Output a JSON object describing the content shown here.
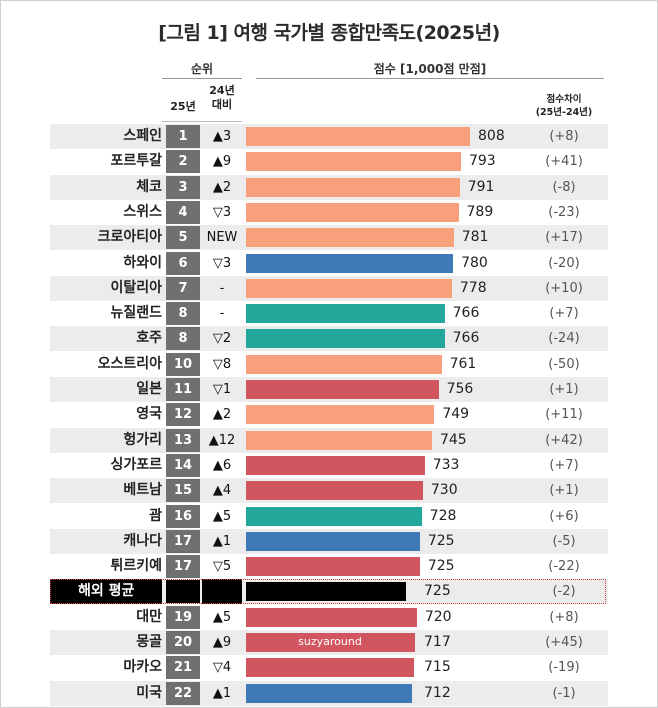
{
  "title": "[그림 1] 여행 국가별 종합만족도(2025년)",
  "header": {
    "rank_group": "순위",
    "rank_25": "25년",
    "rank_24_line1": "24년",
    "rank_24_line2": "대비",
    "score_group": "점수 [1,000점 만점]",
    "diff_line1": "점수차이",
    "diff_line2": "(25년-24년)"
  },
  "watermark": "suzyaround",
  "colors": {
    "orange": "#f8a07c",
    "blue": "#3f79b8",
    "teal": "#23a79a",
    "red": "#d1565f",
    "black": "#000000",
    "rank_box": "#707070"
  },
  "chart_data": {
    "type": "bar",
    "orientation": "horizontal",
    "title": "[그림 1] 여행 국가별 종합만족도(2025년)",
    "xlabel": "점수 [1,000점 만점]",
    "categories": [
      "스페인",
      "포르투갈",
      "체코",
      "스위스",
      "크로아티아",
      "하와이",
      "이탈리아",
      "뉴질랜드",
      "호주",
      "오스트리아",
      "일본",
      "영국",
      "헝가리",
      "싱가포르",
      "베트남",
      "괌",
      "캐나다",
      "튀르키예",
      "해외 평균",
      "대만",
      "몽골",
      "마카오",
      "미국"
    ],
    "values": [
      808,
      793,
      791,
      789,
      781,
      780,
      778,
      766,
      766,
      761,
      756,
      749,
      745,
      733,
      730,
      728,
      725,
      725,
      725,
      720,
      717,
      715,
      712
    ],
    "rows": [
      {
        "name": "스페인",
        "rank": "1",
        "change": "▲3",
        "score": 808,
        "diff": "(+8)",
        "color": "orange"
      },
      {
        "name": "포르투갈",
        "rank": "2",
        "change": "▲9",
        "score": 793,
        "diff": "(+41)",
        "color": "orange"
      },
      {
        "name": "체코",
        "rank": "3",
        "change": "▲2",
        "score": 791,
        "diff": "(-8)",
        "color": "orange"
      },
      {
        "name": "스위스",
        "rank": "4",
        "change": "▽3",
        "score": 789,
        "diff": "(-23)",
        "color": "orange"
      },
      {
        "name": "크로아티아",
        "rank": "5",
        "change": "NEW",
        "score": 781,
        "diff": "(+17)",
        "color": "orange"
      },
      {
        "name": "하와이",
        "rank": "6",
        "change": "▽3",
        "score": 780,
        "diff": "(-20)",
        "color": "blue"
      },
      {
        "name": "이탈리아",
        "rank": "7",
        "change": "-",
        "score": 778,
        "diff": "(+10)",
        "color": "orange"
      },
      {
        "name": "뉴질랜드",
        "rank": "8",
        "change": "-",
        "score": 766,
        "diff": "(+7)",
        "color": "teal"
      },
      {
        "name": "호주",
        "rank": "8",
        "change": "▽2",
        "score": 766,
        "diff": "(-24)",
        "color": "teal"
      },
      {
        "name": "오스트리아",
        "rank": "10",
        "change": "▽8",
        "score": 761,
        "diff": "(-50)",
        "color": "orange"
      },
      {
        "name": "일본",
        "rank": "11",
        "change": "▽1",
        "score": 756,
        "diff": "(+1)",
        "color": "red"
      },
      {
        "name": "영국",
        "rank": "12",
        "change": "▲2",
        "score": 749,
        "diff": "(+11)",
        "color": "orange"
      },
      {
        "name": "헝가리",
        "rank": "13",
        "change": "▲12",
        "score": 745,
        "diff": "(+42)",
        "color": "orange"
      },
      {
        "name": "싱가포르",
        "rank": "14",
        "change": "▲6",
        "score": 733,
        "diff": "(+7)",
        "color": "red"
      },
      {
        "name": "베트남",
        "rank": "15",
        "change": "▲4",
        "score": 730,
        "diff": "(+1)",
        "color": "red"
      },
      {
        "name": "괌",
        "rank": "16",
        "change": "▲5",
        "score": 728,
        "diff": "(+6)",
        "color": "teal"
      },
      {
        "name": "캐나다",
        "rank": "17",
        "change": "▲1",
        "score": 725,
        "diff": "(-5)",
        "color": "blue"
      },
      {
        "name": "튀르키예",
        "rank": "17",
        "change": "▽5",
        "score": 725,
        "diff": "(-22)",
        "color": "red"
      },
      {
        "name": "해외 평균",
        "rank": "",
        "change": "",
        "score": 725,
        "diff": "(-2)",
        "color": "black",
        "average": true
      },
      {
        "name": "대만",
        "rank": "19",
        "change": "▲5",
        "score": 720,
        "diff": "(+8)",
        "color": "red"
      },
      {
        "name": "몽골",
        "rank": "20",
        "change": "▲9",
        "score": 717,
        "diff": "(+45)",
        "color": "red"
      },
      {
        "name": "마카오",
        "rank": "21",
        "change": "▽4",
        "score": 715,
        "diff": "(-19)",
        "color": "red"
      },
      {
        "name": "미국",
        "rank": "22",
        "change": "▲1",
        "score": 712,
        "diff": "(-1)",
        "color": "blue"
      }
    ]
  }
}
